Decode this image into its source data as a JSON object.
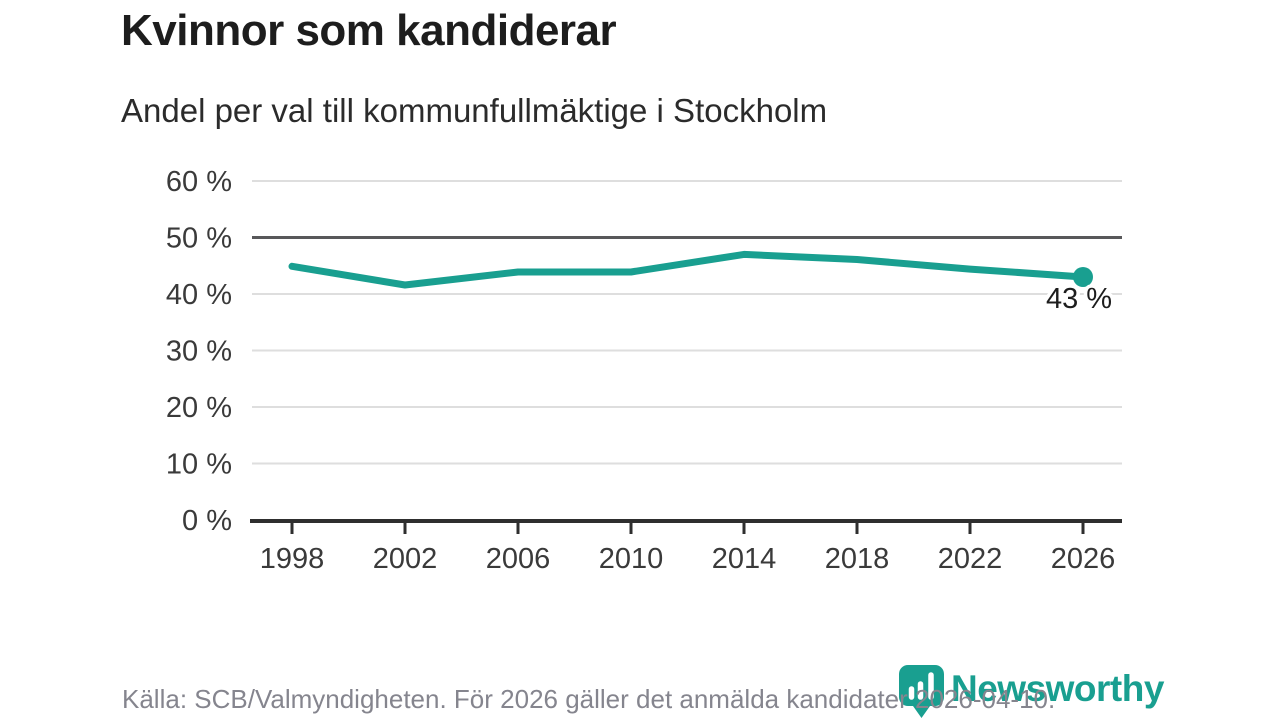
{
  "chart_data": {
    "type": "line",
    "title": "Kvinnor som kandiderar",
    "subtitle": "Andel per val till kommunfullmäktige i Stockholm",
    "categories": [
      "1998",
      "2002",
      "2006",
      "2010",
      "2014",
      "2018",
      "2022",
      "2026"
    ],
    "values": [
      44.9,
      41.6,
      43.9,
      43.9,
      47.0,
      46.1,
      44.4,
      43.0
    ],
    "end_point_label": "43 %",
    "xlabel": "",
    "ylabel": "",
    "ylim": [
      0,
      60
    ],
    "ytick_step": 10,
    "ytick_suffix": " %",
    "grid": true,
    "emphasized_gridline_value": 50,
    "legend": "none",
    "line_color": "#199f90"
  },
  "footer": {
    "source": "Källa: SCB/Valmyndigheten. För 2026 gäller det anmälda kandidater 2026-04-10.",
    "brand": "Newsworthy"
  },
  "colors": {
    "accent_teal": "#199f90",
    "grid": "#dedede",
    "grid_emphasis": "#58585a",
    "axis": "#2e2e2e",
    "tick_label": "#3a3a3a",
    "title_text": "#1d1d1d",
    "subtitle_text": "#2b2b2b",
    "source_text": "#85858e"
  }
}
